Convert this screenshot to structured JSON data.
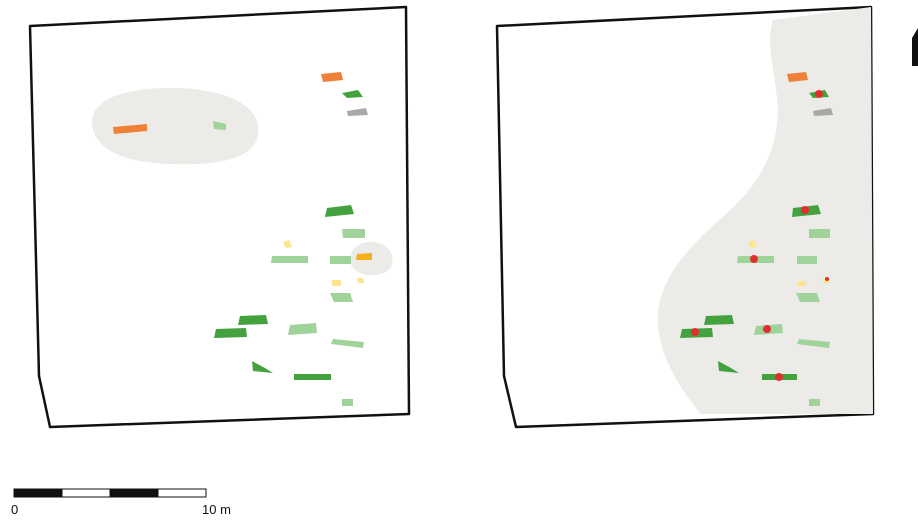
{
  "figure": {
    "north_arrow": "north-arrow-icon",
    "scale_bar": {
      "start_label": "0",
      "end_label": "10 m",
      "segments": 4
    },
    "panels": [
      {
        "id": "left",
        "features": {
          "orange": 2,
          "dark_green": 7,
          "light_green": 10,
          "yellow": 4,
          "gray": 1
        },
        "highlight_zones": 2
      },
      {
        "id": "right",
        "features": {
          "orange": 1,
          "dark_green": 7,
          "light_green": 10,
          "yellow": 3,
          "gray": 1
        },
        "red_points": 7,
        "highlight_zones": 1
      }
    ],
    "colors": {
      "shade": "#ecebe8",
      "outline": "#111111",
      "dark_green": "#44a23e",
      "light_green": "#9fd39a",
      "orange": "#f08038",
      "yellow_light": "#ffe48e",
      "yellow_strong": "#f3b019",
      "gray": "#a8a8a8",
      "red": "#e22e2e"
    }
  }
}
